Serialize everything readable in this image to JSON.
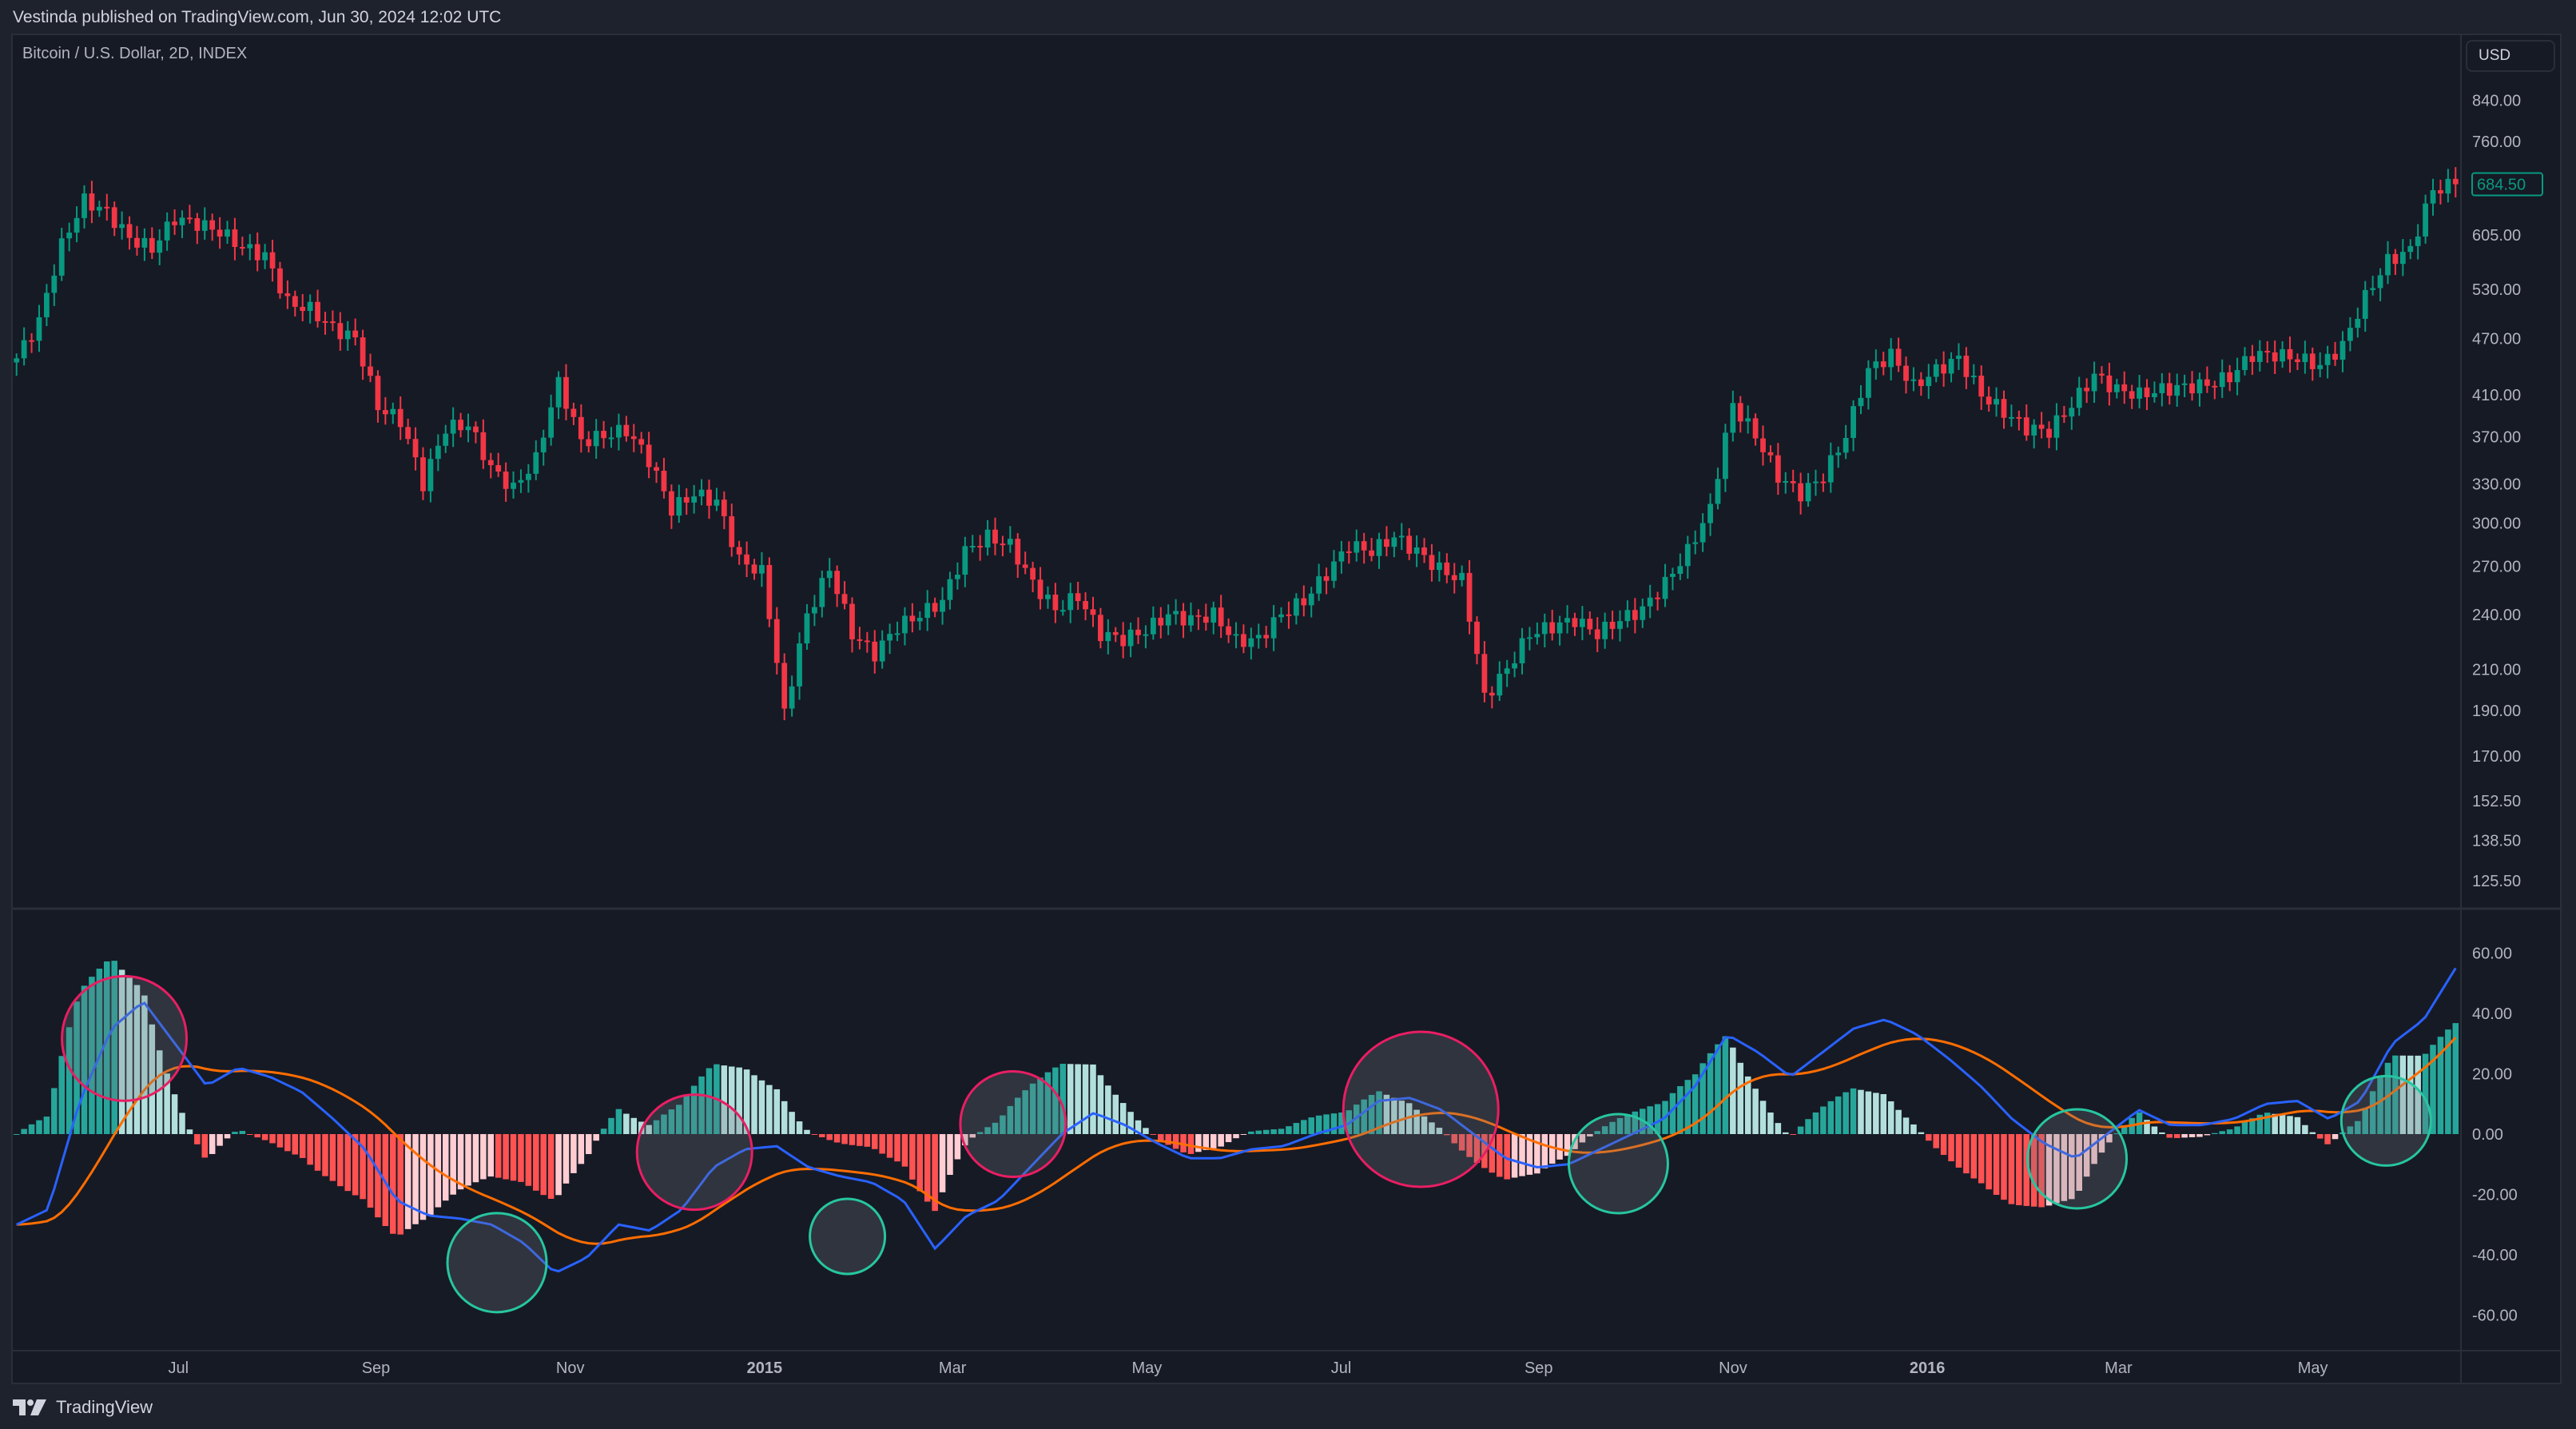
{
  "header": {
    "publisher_text": "Vestinda published on TradingView.com, Jun 30, 2024 12:02 UTC"
  },
  "symbol": {
    "title": "Bitcoin / U.S. Dollar, 2D, INDEX"
  },
  "currency_button": "USD",
  "footer": {
    "logo_text": "TradingView"
  },
  "colors": {
    "up": "#089981",
    "down": "#f23645",
    "macd": "#2962ff",
    "signal": "#ff6d00",
    "hist_up_strong": "#26a69a",
    "hist_up_weak": "#b2dfdb",
    "hist_down_weak": "#ffcdd2",
    "hist_down_strong": "#ff5252",
    "annotation_bearish": "#e91e63",
    "annotation_bullish": "#26c6a0"
  },
  "chart_data": [
    {
      "type": "candlestick",
      "scale": "log",
      "start": "2014-05-10",
      "end": "2016-06-16",
      "last_price": "684.50",
      "price_axis_ticks": [
        "840.00",
        "760.00",
        "684.50",
        "605.00",
        "530.00",
        "470.00",
        "410.00",
        "370.00",
        "330.00",
        "300.00",
        "270.00",
        "240.00",
        "210.00",
        "190.00",
        "170.00",
        "152.50",
        "138.50",
        "125.50"
      ],
      "close": [
        448,
        490,
        590,
        658,
        640,
        600,
        585,
        630,
        622,
        610,
        587,
        575,
        513,
        505,
        482,
        470,
        398,
        385,
        330,
        378,
        381,
        343,
        326,
        350,
        422,
        366,
        371,
        376,
        350,
        310,
        322,
        316,
        274,
        266,
        188,
        239,
        268,
        229,
        218,
        233,
        240,
        248,
        280,
        290,
        284,
        259,
        243,
        251,
        229,
        226,
        231,
        240,
        237,
        240,
        225,
        226,
        240,
        248,
        265,
        284,
        280,
        290,
        280,
        268,
        261,
        196,
        210,
        229,
        233,
        237,
        229,
        237,
        243,
        259,
        280,
        310,
        400,
        371,
        336,
        322,
        336,
        371,
        435,
        452,
        418,
        435,
        448,
        410,
        393,
        378,
        375,
        400,
        430,
        415,
        410,
        415,
        418,
        420,
        428,
        452,
        452,
        448,
        440,
        462,
        520,
        568,
        583,
        675,
        684.5
      ],
      "time_axis": [
        {
          "label": "Jul",
          "date": "2014-07-01"
        },
        {
          "label": "Sep",
          "date": "2014-09-01"
        },
        {
          "label": "Nov",
          "date": "2014-11-01"
        },
        {
          "label": "2015",
          "date": "2015-01-01",
          "bold": true
        },
        {
          "label": "Mar",
          "date": "2015-03-01"
        },
        {
          "label": "May",
          "date": "2015-05-01"
        },
        {
          "label": "Jul",
          "date": "2015-07-01"
        },
        {
          "label": "Sep",
          "date": "2015-09-01"
        },
        {
          "label": "Nov",
          "date": "2015-11-01"
        },
        {
          "label": "2016",
          "date": "2016-01-01",
          "bold": true
        },
        {
          "label": "Mar",
          "date": "2016-03-01"
        },
        {
          "label": "May",
          "date": "2016-05-01"
        }
      ]
    },
    {
      "type": "macd",
      "start": "2014-05-10",
      "end": "2016-06-16",
      "axis_ticks": [
        "60.00",
        "40.00",
        "20.00",
        "0.00",
        "-20.00",
        "-40.00",
        "-60.00"
      ],
      "ylim": [
        -60,
        60
      ],
      "macd": [
        -30,
        -25,
        11,
        35,
        44,
        30,
        16,
        22,
        19,
        14,
        5,
        -5,
        -22,
        -27,
        -28,
        -30,
        -36,
        -46,
        -41,
        -30,
        -32,
        -25,
        -11,
        -5,
        -4,
        -11,
        -14,
        -16,
        -22,
        -38,
        -27,
        -22,
        -11,
        0,
        7,
        3,
        -3,
        -8,
        -8,
        -5,
        -4,
        0,
        3,
        11,
        12,
        8,
        0,
        -8,
        -11,
        -10,
        -5,
        0,
        5,
        16,
        33,
        27,
        19,
        27,
        35,
        38,
        33,
        25,
        16,
        5,
        -3,
        -8,
        0,
        8,
        3,
        3,
        5,
        10,
        11,
        5,
        11,
        30,
        38,
        55
      ],
      "annotations": [
        {
          "date": "2014-06-14",
          "value": 31.7,
          "kind": "bearish"
        },
        {
          "date": "2014-10-09",
          "value": -42.6,
          "kind": "bullish"
        },
        {
          "date": "2014-12-10",
          "value": -6,
          "kind": "bearish"
        },
        {
          "date": "2015-01-27",
          "value": -33.9,
          "kind": "bullish"
        },
        {
          "date": "2015-03-20",
          "value": 3.3,
          "kind": "bearish"
        },
        {
          "date": "2015-07-26",
          "value": 8.2,
          "kind": "bearish"
        },
        {
          "date": "2015-09-26",
          "value": -9.8,
          "kind": "bullish"
        },
        {
          "date": "2016-02-17",
          "value": -8.2,
          "kind": "bullish"
        },
        {
          "date": "2016-05-24",
          "value": 4.4,
          "kind": "bullish"
        }
      ]
    }
  ]
}
